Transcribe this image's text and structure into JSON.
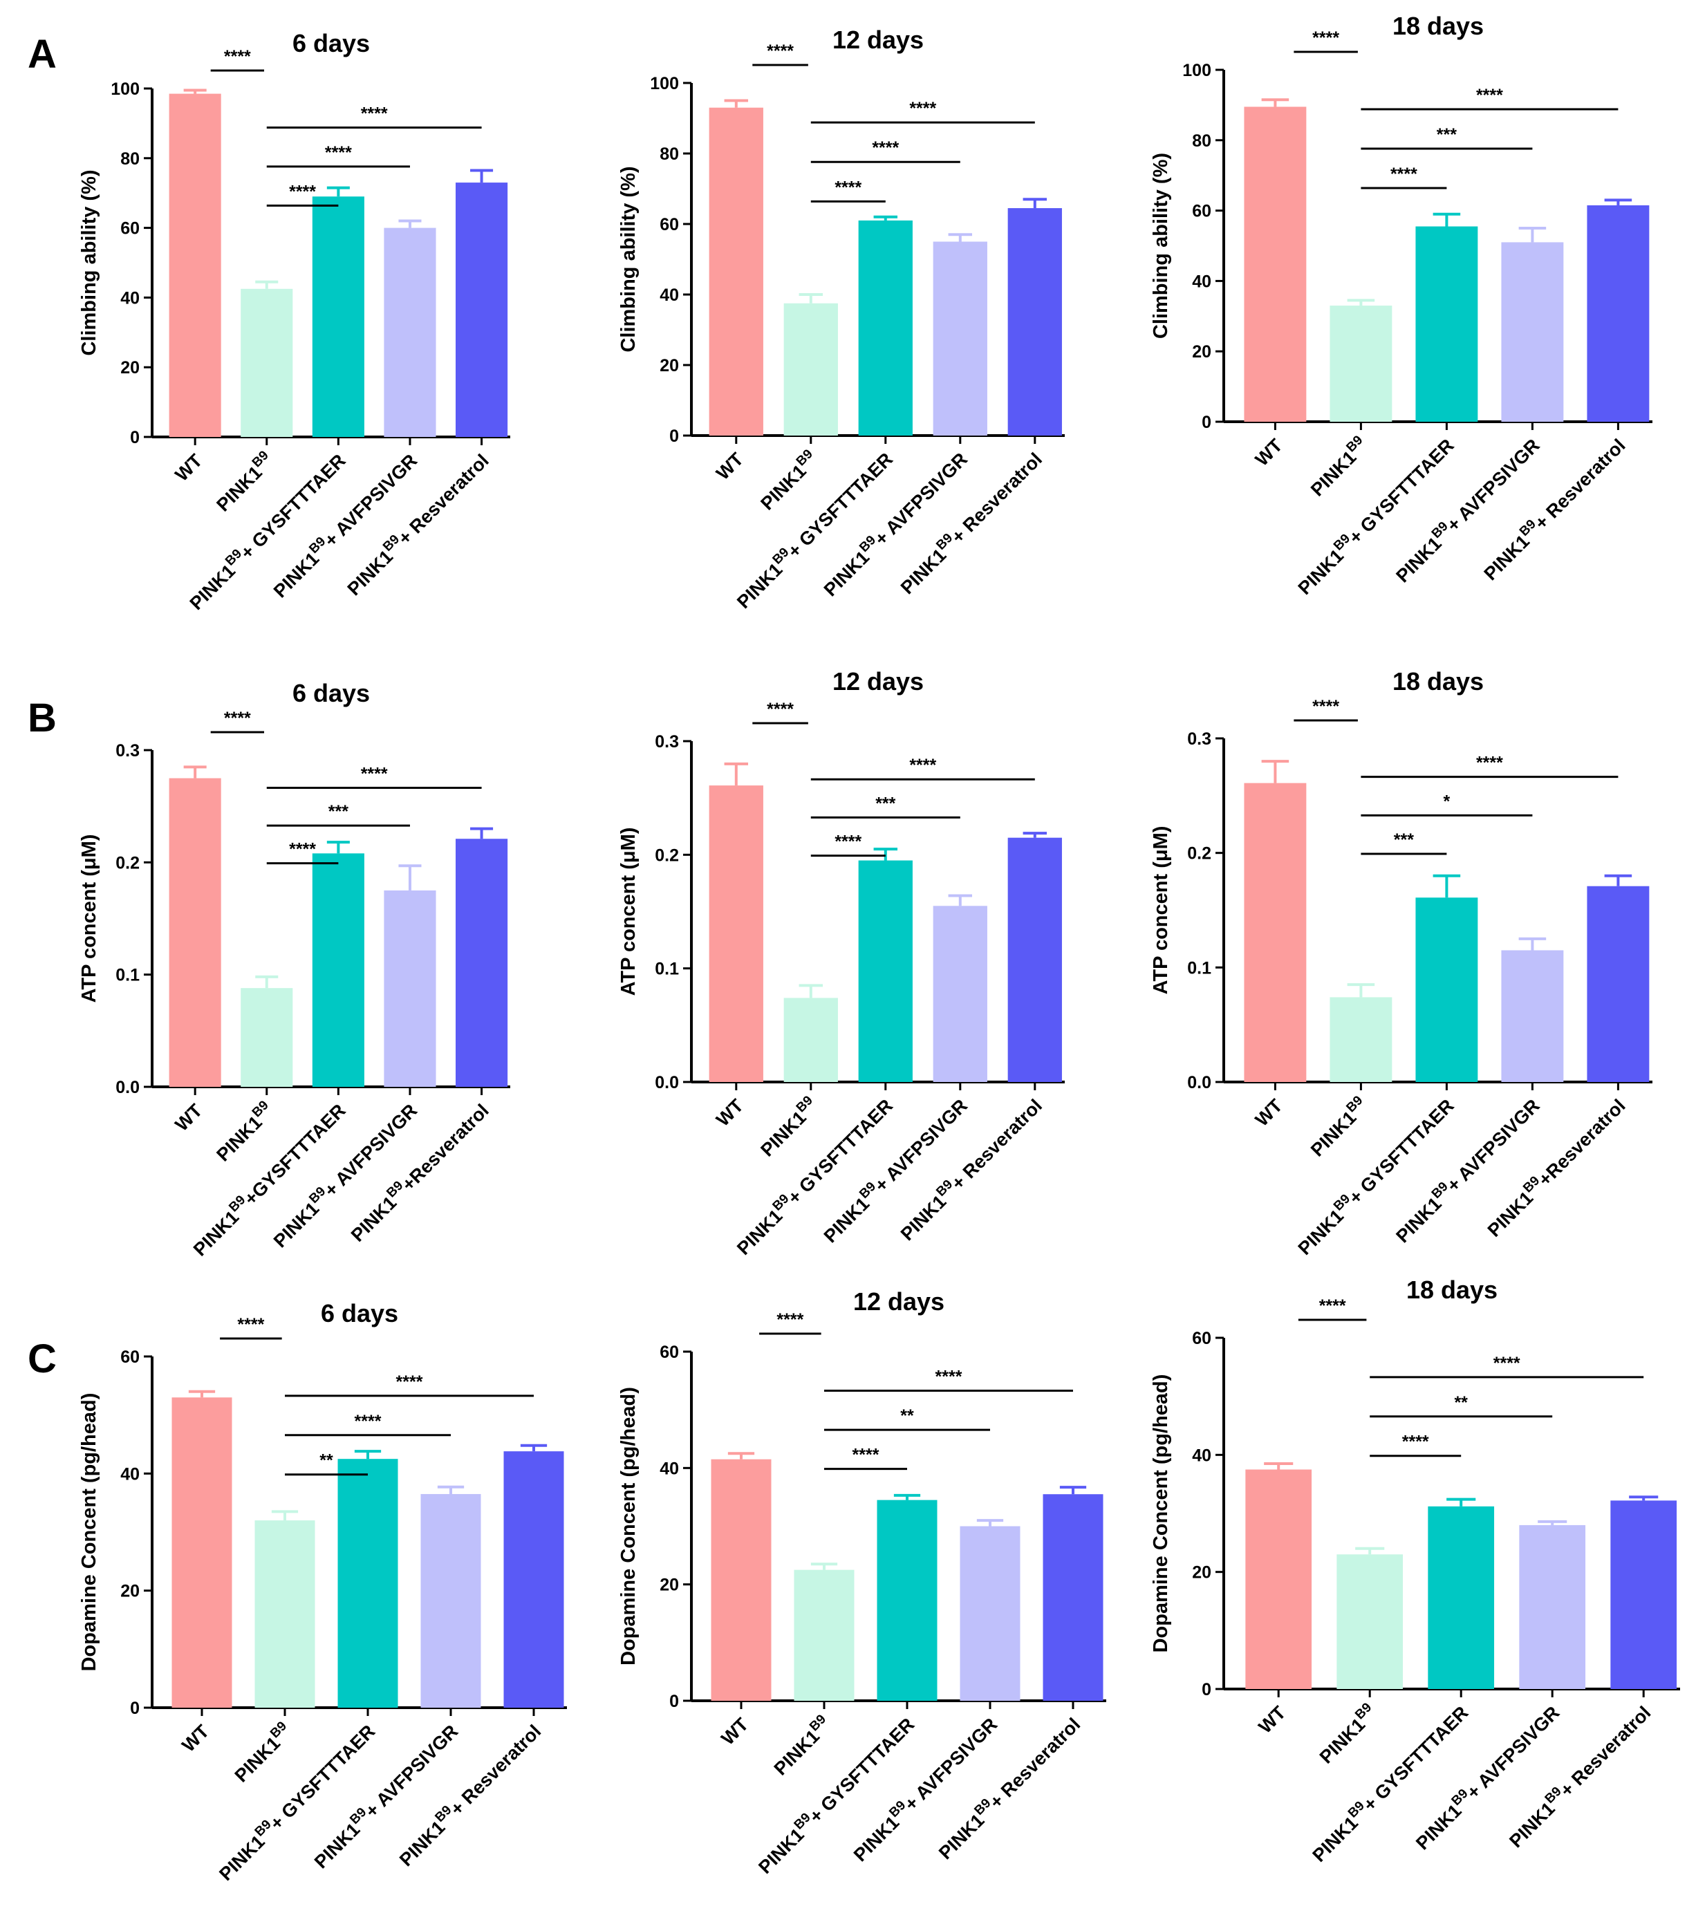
{
  "panel_labels": [
    "A",
    "B",
    "C"
  ],
  "category_parts": [
    {
      "base": "WT",
      "sup": "",
      "suffix": ""
    },
    {
      "base": "PINK1",
      "sup": "B9",
      "suffix": ""
    },
    {
      "base": "PINK1",
      "sup": "B9",
      "suffix": "+ GYSFTTTAER"
    },
    {
      "base": "PINK1",
      "sup": "B9",
      "suffix": "+ AVFPSIVGR"
    },
    {
      "base": "PINK1",
      "sup": "B9",
      "suffix": "+ Resveratrol"
    }
  ],
  "colors": [
    "#fc9d9d",
    "#c6f6e4",
    "#00c8c3",
    "#bfc0fb",
    "#5a5af6"
  ],
  "chart_data": [
    {
      "type": "bar",
      "panel": "A",
      "title": "6 days",
      "ylabel": "Climbing ability (%)",
      "ylim": [
        0,
        100
      ],
      "yticks": [
        "0",
        "20",
        "40",
        "60",
        "80",
        "100"
      ],
      "categories": [
        "WT",
        "PINK1B9",
        "PINK1B9+ GYSFTTTAER",
        "PINK1B9+ AVFPSIVGR",
        "PINK1B9+ Resveratrol"
      ],
      "values": [
        98.5,
        42.5,
        69,
        60,
        73
      ],
      "errors": [
        1,
        2,
        2.5,
        2,
        3.5
      ],
      "significance": [
        {
          "from": 0,
          "to": 1,
          "label": "****"
        },
        {
          "from": 1,
          "to": 2,
          "label": "****"
        },
        {
          "from": 1,
          "to": 3,
          "label": "****"
        },
        {
          "from": 1,
          "to": 4,
          "label": "****"
        }
      ]
    },
    {
      "type": "bar",
      "panel": "A",
      "title": "12 days",
      "ylabel": "Climbing ability (%)",
      "ylim": [
        0,
        100
      ],
      "yticks": [
        "0",
        "20",
        "40",
        "60",
        "80",
        "100"
      ],
      "categories": [
        "WT",
        "PINK1B9",
        "PINK1B9+ GYSFTTTAER",
        "PINK1B9+ AVFPSIVGR",
        "PINK1B9+ Resveratrol"
      ],
      "values": [
        93,
        37.5,
        61,
        55,
        64.5
      ],
      "errors": [
        2,
        2.5,
        1,
        2,
        2.5
      ],
      "significance": [
        {
          "from": 0,
          "to": 1,
          "label": "****"
        },
        {
          "from": 1,
          "to": 2,
          "label": "****"
        },
        {
          "from": 1,
          "to": 3,
          "label": "****"
        },
        {
          "from": 1,
          "to": 4,
          "label": "****"
        }
      ]
    },
    {
      "type": "bar",
      "panel": "A",
      "title": "18 days",
      "ylabel": "Climbing ability (%)",
      "ylim": [
        0,
        100
      ],
      "yticks": [
        "0",
        "20",
        "40",
        "60",
        "80",
        "100"
      ],
      "categories": [
        "WT",
        "PINK1B9",
        "PINK1B9+ GYSFTTTAER",
        "PINK1B9+ AVFPSIVGR",
        "PINK1B9+ Resveratrol"
      ],
      "values": [
        89.5,
        33,
        55.5,
        51,
        61.5
      ],
      "errors": [
        2,
        1.5,
        3.5,
        4,
        1.5
      ],
      "significance": [
        {
          "from": 0,
          "to": 1,
          "label": "****"
        },
        {
          "from": 1,
          "to": 2,
          "label": "****"
        },
        {
          "from": 1,
          "to": 3,
          "label": "***"
        },
        {
          "from": 1,
          "to": 4,
          "label": "****"
        }
      ]
    },
    {
      "type": "bar",
      "panel": "B",
      "title": "6 days",
      "ylabel": "ATP concent (μM)",
      "ylim": [
        0,
        0.3
      ],
      "yticks": [
        "0.0",
        "0.1",
        "0.2",
        "0.3"
      ],
      "categories": [
        "WT",
        "PINK1B9",
        "PINK1B9+GYSFTTTAER",
        "PINK1B9+ AVFPSIVGR",
        "PINK1B9+Resveratrol"
      ],
      "values": [
        0.275,
        0.088,
        0.208,
        0.175,
        0.221
      ],
      "errors": [
        0.01,
        0.01,
        0.01,
        0.022,
        0.009
      ],
      "significance": [
        {
          "from": 0,
          "to": 1,
          "label": "****"
        },
        {
          "from": 1,
          "to": 2,
          "label": "****"
        },
        {
          "from": 1,
          "to": 3,
          "label": "***"
        },
        {
          "from": 1,
          "to": 4,
          "label": "****"
        }
      ]
    },
    {
      "type": "bar",
      "panel": "B",
      "title": "12 days",
      "ylabel": "ATP concent (μM)",
      "ylim": [
        0,
        0.3
      ],
      "yticks": [
        "0.0",
        "0.1",
        "0.2",
        "0.3"
      ],
      "categories": [
        "WT",
        "PINK1B9",
        "PINK1B9+ GYSFTTTAER",
        "PINK1B9+ AVFPSIVGR",
        "PINK1B9+ Resveratrol"
      ],
      "values": [
        0.261,
        0.074,
        0.195,
        0.155,
        0.215
      ],
      "errors": [
        0.019,
        0.011,
        0.01,
        0.009,
        0.004
      ],
      "significance": [
        {
          "from": 0,
          "to": 1,
          "label": "****"
        },
        {
          "from": 1,
          "to": 2,
          "label": "****"
        },
        {
          "from": 1,
          "to": 3,
          "label": "***"
        },
        {
          "from": 1,
          "to": 4,
          "label": "****"
        }
      ]
    },
    {
      "type": "bar",
      "panel": "B",
      "title": "18 days",
      "ylabel": "ATP concent (μM)",
      "ylim": [
        0,
        0.3
      ],
      "yticks": [
        "0.0",
        "0.1",
        "0.2",
        "0.3"
      ],
      "categories": [
        "WT",
        "PINK1B9",
        "PINK1B9+ GYSFTTTAER",
        "PINK1B9+ AVFPSIVGR",
        "PINK1B9+Resveratrol"
      ],
      "values": [
        0.261,
        0.074,
        0.161,
        0.115,
        0.171
      ],
      "errors": [
        0.019,
        0.011,
        0.019,
        0.01,
        0.009
      ],
      "significance": [
        {
          "from": 0,
          "to": 1,
          "label": "****"
        },
        {
          "from": 1,
          "to": 2,
          "label": "***"
        },
        {
          "from": 1,
          "to": 3,
          "label": "*"
        },
        {
          "from": 1,
          "to": 4,
          "label": "****"
        }
      ]
    },
    {
      "type": "bar",
      "panel": "C",
      "title": "6 days",
      "ylabel": "Dopamine Concent (pg/head)",
      "ylim": [
        0,
        60
      ],
      "yticks": [
        "0",
        "20",
        "40",
        "60"
      ],
      "categories": [
        "WT",
        "PINK1B9",
        "PINK1B9+ GYSFTTTAER",
        "PINK1B9+ AVFPSIVGR",
        "PINK1B9+ Resveratrol"
      ],
      "values": [
        53,
        32,
        42.5,
        36.5,
        43.8
      ],
      "errors": [
        1,
        1.5,
        1.3,
        1.2,
        1
      ],
      "significance": [
        {
          "from": 0,
          "to": 1,
          "label": "****"
        },
        {
          "from": 1,
          "to": 2,
          "label": "**"
        },
        {
          "from": 1,
          "to": 3,
          "label": "****"
        },
        {
          "from": 1,
          "to": 4,
          "label": "****"
        }
      ]
    },
    {
      "type": "bar",
      "panel": "C",
      "title": "12 days",
      "ylabel": "Dopamine Concent (pg/head)",
      "ylim": [
        0,
        60
      ],
      "yticks": [
        "0",
        "20",
        "40",
        "60"
      ],
      "categories": [
        "WT",
        "PINK1B9",
        "PINK1B9+ GYSFTTTAER",
        "PINK1B9+ AVFPSIVGR",
        "PINK1B9+ Resveratrol"
      ],
      "values": [
        41.5,
        22.5,
        34.5,
        30,
        35.5
      ],
      "errors": [
        1,
        1,
        0.8,
        1,
        1.2
      ],
      "significance": [
        {
          "from": 0,
          "to": 1,
          "label": "****"
        },
        {
          "from": 1,
          "to": 2,
          "label": "****"
        },
        {
          "from": 1,
          "to": 3,
          "label": "**"
        },
        {
          "from": 1,
          "to": 4,
          "label": "****"
        }
      ]
    },
    {
      "type": "bar",
      "panel": "C",
      "title": "18 days",
      "ylabel": "Dopamine Concent (pg/head)",
      "ylim": [
        0,
        60
      ],
      "yticks": [
        "0",
        "20",
        "40",
        "60"
      ],
      "categories": [
        "WT",
        "PINK1B9",
        "PINK1B9+ GYSFTTTAER",
        "PINK1B9+ AVFPSIVGR",
        "PINK1B9+ Resveratrol"
      ],
      "values": [
        37.5,
        23,
        31.2,
        28,
        32.2
      ],
      "errors": [
        1,
        1,
        1.2,
        0.6,
        0.6
      ],
      "significance": [
        {
          "from": 0,
          "to": 1,
          "label": "****"
        },
        {
          "from": 1,
          "to": 2,
          "label": "****"
        },
        {
          "from": 1,
          "to": 3,
          "label": "**"
        },
        {
          "from": 1,
          "to": 4,
          "label": "****"
        }
      ]
    }
  ]
}
